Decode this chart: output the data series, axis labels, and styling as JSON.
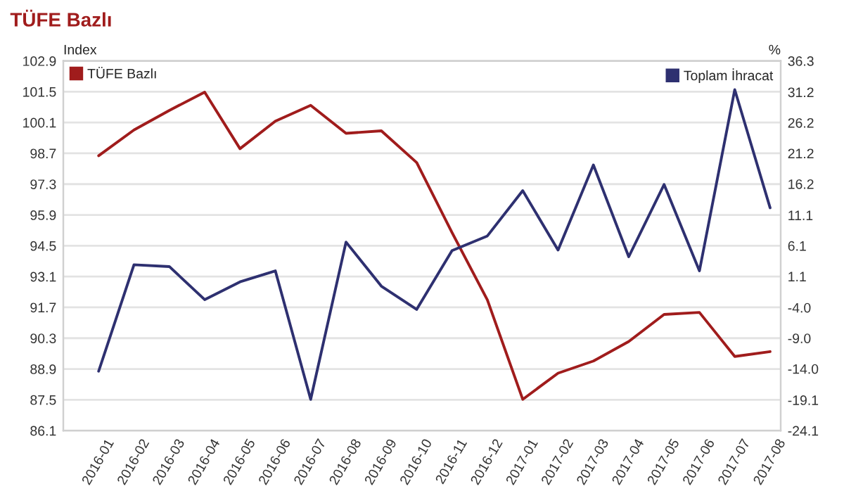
{
  "chart_data": {
    "type": "line",
    "title": "TÜFE Bazlı",
    "ylabel": "Index",
    "y2label": "%",
    "categories": [
      "2016-01",
      "2016-02",
      "2016-03",
      "2016-04",
      "2016-05",
      "2016-06",
      "2016-07",
      "2016-08",
      "2016-09",
      "2016-10",
      "2016-11",
      "2016-12",
      "2017-01",
      "2017-02",
      "2017-03",
      "2017-04",
      "2017-05",
      "2017-06",
      "2017-07",
      "2017-08"
    ],
    "series": [
      {
        "name": "TÜFE Bazlı",
        "color": "#a01c1c",
        "values": [
          98.59,
          99.76,
          100.65,
          101.48,
          98.91,
          100.16,
          100.88,
          99.61,
          99.72,
          98.28,
          95.1,
          92.04,
          87.52,
          88.71,
          89.26,
          90.15,
          91.38,
          91.47,
          89.47,
          89.69
        ]
      },
      {
        "name": "Toplam İhracat",
        "color": "#2e3070",
        "axis": "y2",
        "values": [
          -14.4,
          3.0,
          2.7,
          -2.7,
          0.2,
          2.0,
          -19.0,
          6.7,
          -0.5,
          -4.3,
          5.3,
          7.7,
          15.1,
          5.4,
          19.3,
          4.3,
          16.1,
          2.0,
          31.6,
          12.3
        ]
      }
    ],
    "ylim": [
      86.1,
      102.9
    ],
    "yticks": [
      {
        "value": 86.1,
        "label": "86.1"
      },
      {
        "value": 87.5,
        "label": "87.5"
      },
      {
        "value": 88.9,
        "label": "88.9"
      },
      {
        "value": 90.3,
        "label": "90.3"
      },
      {
        "value": 91.7,
        "label": "91.7"
      },
      {
        "value": 93.1,
        "label": "93.1"
      },
      {
        "value": 94.5,
        "label": "94.5"
      },
      {
        "value": 95.9,
        "label": "95.9"
      },
      {
        "value": 97.3,
        "label": "97.3"
      },
      {
        "value": 98.7,
        "label": "98.7"
      },
      {
        "value": 100.1,
        "label": "100.1"
      },
      {
        "value": 101.5,
        "label": "101.5"
      },
      {
        "value": 102.9,
        "label": "102.9"
      }
    ],
    "y2lim": [
      -24.1,
      36.3
    ],
    "y2ticks": [
      {
        "value": -24.1,
        "label": "-24.1"
      },
      {
        "value": -19.1,
        "label": "-19.1"
      },
      {
        "value": -14.0,
        "label": "-14.0"
      },
      {
        "value": -9.0,
        "label": "-9.0"
      },
      {
        "value": -4.0,
        "label": "-4.0"
      },
      {
        "value": 1.1,
        "label": "1.1"
      },
      {
        "value": 6.1,
        "label": "6.1"
      },
      {
        "value": 11.1,
        "label": "11.1"
      },
      {
        "value": 16.2,
        "label": "16.2"
      },
      {
        "value": 21.2,
        "label": "21.2"
      },
      {
        "value": 26.2,
        "label": "26.2"
      },
      {
        "value": 31.2,
        "label": "31.2"
      },
      {
        "value": 36.3,
        "label": "36.3"
      }
    ],
    "grid": "y",
    "legend": "top",
    "marker": "none",
    "line_style": "solid"
  }
}
